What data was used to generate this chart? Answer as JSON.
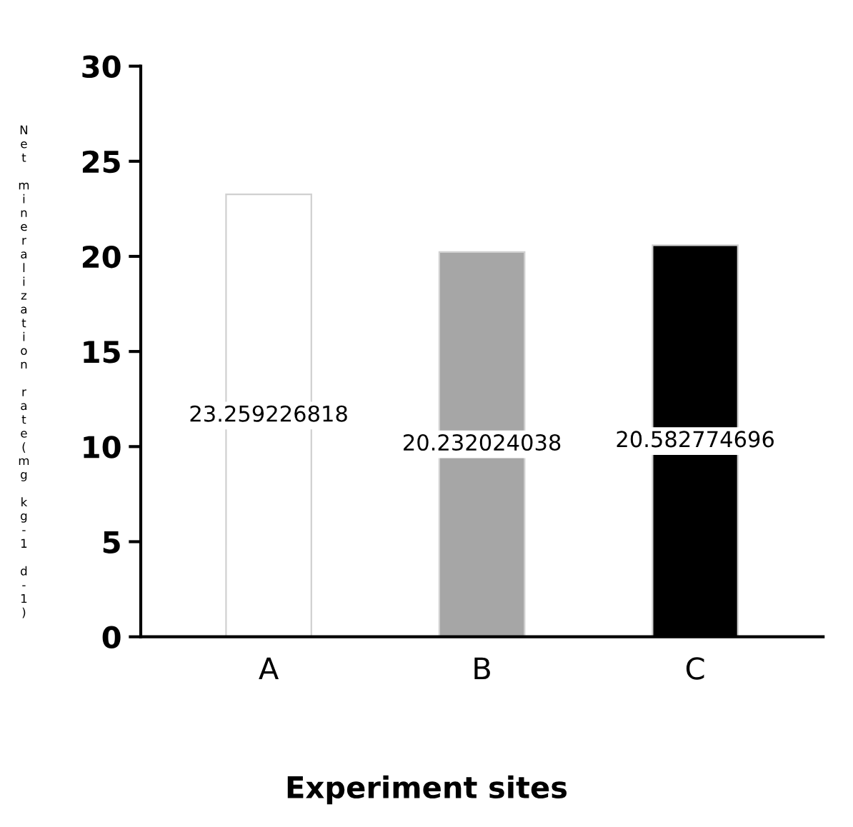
{
  "chart_data": {
    "type": "bar",
    "xlabel": "Experiment sites",
    "ylabel": "Net mineralization rate(mg kg-1 d-1)",
    "categories": [
      "A",
      "B",
      "C"
    ],
    "values": [
      23.259226818,
      20.232024038,
      20.582774696
    ],
    "colors": [
      "#ffffff",
      "#a6a6a6",
      "#000000"
    ],
    "ylim": [
      0,
      30
    ],
    "yticks": [
      0,
      5,
      10,
      15,
      20,
      25,
      30
    ],
    "data_labels": true,
    "grid": false,
    "legend": false
  }
}
